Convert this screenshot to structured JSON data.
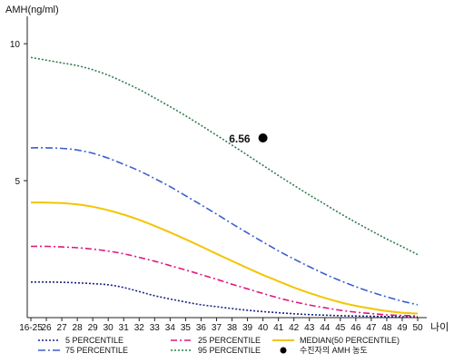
{
  "chart_data": {
    "type": "line",
    "ylabel": "AMH(ng/ml)",
    "xlabel": "나이",
    "ylim": [
      0,
      11
    ],
    "y_ticks": [
      5,
      10
    ],
    "x": [
      "16-25",
      "26",
      "27",
      "28",
      "29",
      "30",
      "31",
      "32",
      "33",
      "34",
      "35",
      "36",
      "37",
      "38",
      "39",
      "40",
      "41",
      "42",
      "43",
      "44",
      "45",
      "46",
      "47",
      "48",
      "49",
      "50"
    ],
    "series": [
      {
        "name": "5 PERCENTILE",
        "color": "#1a237e",
        "dash": "2,2",
        "values": [
          1.3,
          1.3,
          1.29,
          1.27,
          1.24,
          1.2,
          1.1,
          0.95,
          0.8,
          0.68,
          0.57,
          0.47,
          0.4,
          0.33,
          0.27,
          0.22,
          0.18,
          0.14,
          0.11,
          0.09,
          0.07,
          0.06,
          0.05,
          0.04,
          0.03,
          0.03
        ]
      },
      {
        "name": "25 PERCENTILE",
        "color": "#e0177e",
        "dash": "7,3,2,3",
        "values": [
          2.6,
          2.6,
          2.58,
          2.55,
          2.5,
          2.43,
          2.33,
          2.2,
          2.06,
          1.9,
          1.74,
          1.57,
          1.4,
          1.22,
          1.05,
          0.88,
          0.72,
          0.58,
          0.46,
          0.36,
          0.27,
          0.2,
          0.15,
          0.1,
          0.08,
          0.06
        ]
      },
      {
        "name": "MEDIAN(50 PERCENTILE)",
        "color": "#f2c500",
        "dash": "",
        "values": [
          4.2,
          4.2,
          4.18,
          4.13,
          4.05,
          3.92,
          3.76,
          3.57,
          3.35,
          3.11,
          2.86,
          2.6,
          2.33,
          2.07,
          1.81,
          1.56,
          1.33,
          1.1,
          0.9,
          0.72,
          0.56,
          0.43,
          0.33,
          0.24,
          0.18,
          0.15
        ]
      },
      {
        "name": "75 PERCENTILE",
        "color": "#3a5fcd",
        "dash": "8,3,2,3",
        "values": [
          6.2,
          6.2,
          6.18,
          6.12,
          6.0,
          5.82,
          5.6,
          5.36,
          5.08,
          4.78,
          4.45,
          4.12,
          3.78,
          3.43,
          3.09,
          2.76,
          2.44,
          2.14,
          1.86,
          1.59,
          1.35,
          1.13,
          0.93,
          0.76,
          0.6,
          0.47
        ]
      },
      {
        "name": "95 PERCENTILE",
        "color": "#2e7d4f",
        "dash": "2,2",
        "values": [
          9.5,
          9.4,
          9.3,
          9.2,
          9.05,
          8.85,
          8.6,
          8.33,
          8.02,
          7.7,
          7.37,
          7.02,
          6.66,
          6.3,
          5.93,
          5.56,
          5.19,
          4.83,
          4.48,
          4.14,
          3.8,
          3.48,
          3.17,
          2.87,
          2.59,
          2.3
        ]
      }
    ],
    "point": {
      "label": "수진자의 AMH 농도",
      "x": "40",
      "y": 6.56,
      "value_label": "6.56",
      "color": "#000000"
    },
    "legend": {
      "placement": "bottom",
      "order": [
        "5 PERCENTILE",
        "25 PERCENTILE",
        "MEDIAN(50 PERCENTILE)",
        "75 PERCENTILE",
        "95 PERCENTILE",
        "수진자의 AMH 농도"
      ]
    }
  }
}
